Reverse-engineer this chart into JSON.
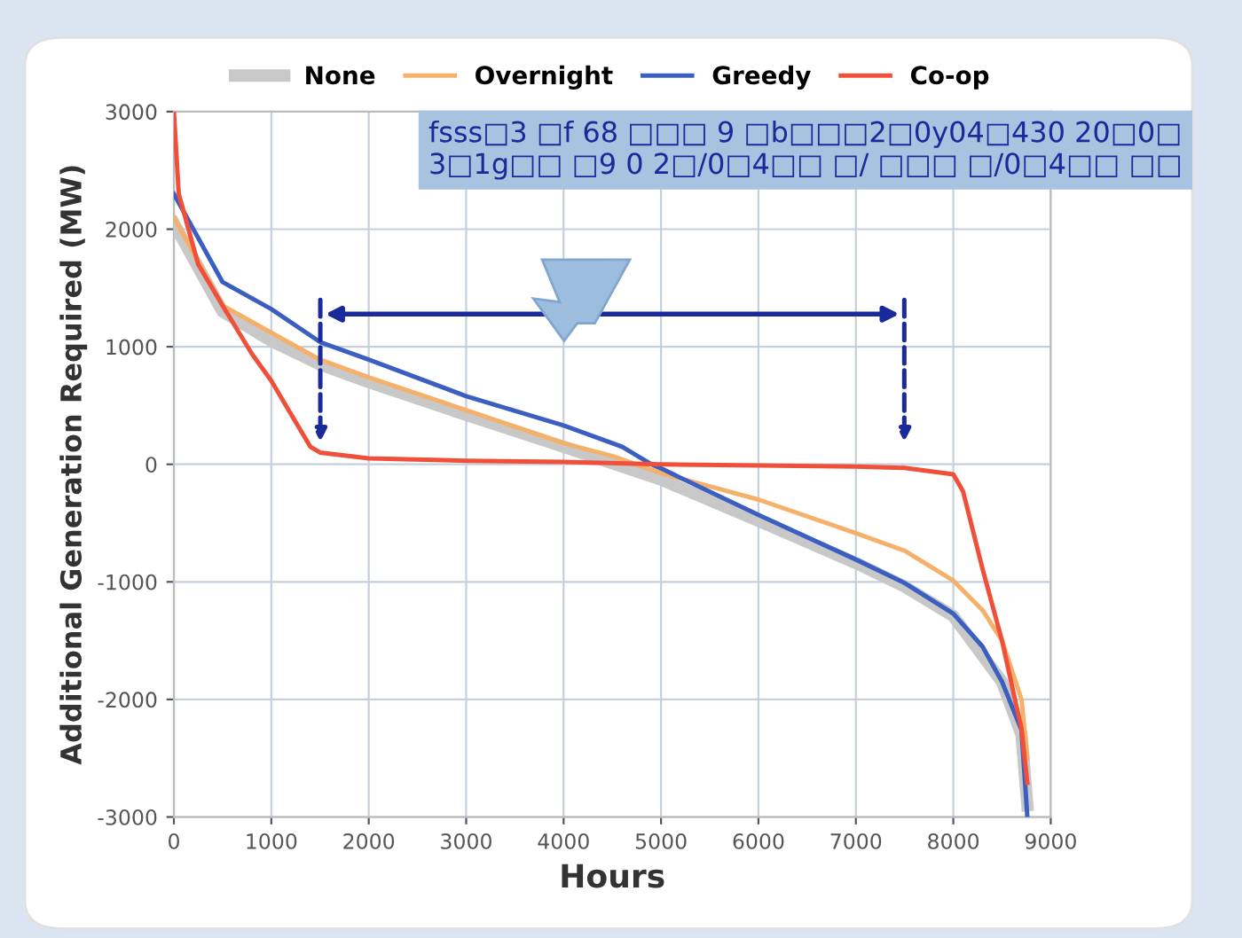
{
  "chart_data": {
    "type": "line",
    "xlabel": "Hours",
    "ylabel": "Additional Generation Required (MW)",
    "xlim": [
      0,
      9000
    ],
    "xticks": [
      0,
      1000,
      2000,
      3000,
      4000,
      5000,
      6000,
      7000,
      8000,
      9000
    ],
    "ylim": [
      -3000,
      3000
    ],
    "yticks": [
      -3000,
      -2000,
      -1000,
      0,
      1000,
      2000,
      3000
    ],
    "grid": true,
    "legend": "top",
    "marker": "none",
    "line_style": "solid",
    "annotations": [
      "fsss□3 □f 68 □□□ 9 □b□□□2□0y04□430 20□0□\n3□1g□□ □9 0 2□/0□4□□ □/ □□□ □/0□4□□ □□"
    ],
    "series": [
      {
        "name": "None",
        "color": "#c8c8c8",
        "x": [
          0,
          500,
          1000,
          1500,
          2000,
          3000,
          4000,
          5000,
          6000,
          7000,
          7500,
          8000,
          8500,
          8700,
          8760
        ],
        "values": [
          2050,
          1300,
          1050,
          850,
          700,
          420,
          150,
          -130,
          -480,
          -840,
          -1040,
          -1290,
          -1850,
          -2300,
          -2900
        ]
      },
      {
        "name": "Overnight",
        "color": "#f5b06a",
        "x": [
          0,
          500,
          1000,
          1500,
          2000,
          3000,
          4000,
          4500,
          5000,
          6000,
          7000,
          7500,
          8000,
          8300,
          8500,
          8700,
          8760
        ],
        "values": [
          2100,
          1350,
          1120,
          890,
          740,
          460,
          180,
          70,
          -75,
          -300,
          -585,
          -735,
          -990,
          -1240,
          -1500,
          -2000,
          -2500
        ]
      },
      {
        "name": "Greedy",
        "color": "#3b5fc0",
        "x": [
          0,
          500,
          1000,
          1500,
          2000,
          3000,
          4000,
          4600,
          4900,
          5000,
          6000,
          7000,
          7500,
          8000,
          8300,
          8500,
          8700,
          8760
        ],
        "values": [
          2300,
          1550,
          1320,
          1040,
          890,
          580,
          330,
          150,
          0,
          -35,
          -430,
          -810,
          -1010,
          -1270,
          -1550,
          -1850,
          -2260,
          -3000
        ]
      },
      {
        "name": "Co-op",
        "color": "#f0503a",
        "x": [
          0,
          50,
          250,
          500,
          800,
          1000,
          1200,
          1400,
          1500,
          2000,
          3000,
          4000,
          5000,
          6000,
          7000,
          7500,
          8000,
          8100,
          8300,
          8500,
          8700,
          8760
        ],
        "values": [
          3000,
          2300,
          1700,
          1350,
          940,
          710,
          430,
          150,
          100,
          50,
          30,
          20,
          0,
          -10,
          -20,
          -30,
          -85,
          -230,
          -890,
          -1500,
          -2250,
          -2710
        ]
      }
    ]
  }
}
